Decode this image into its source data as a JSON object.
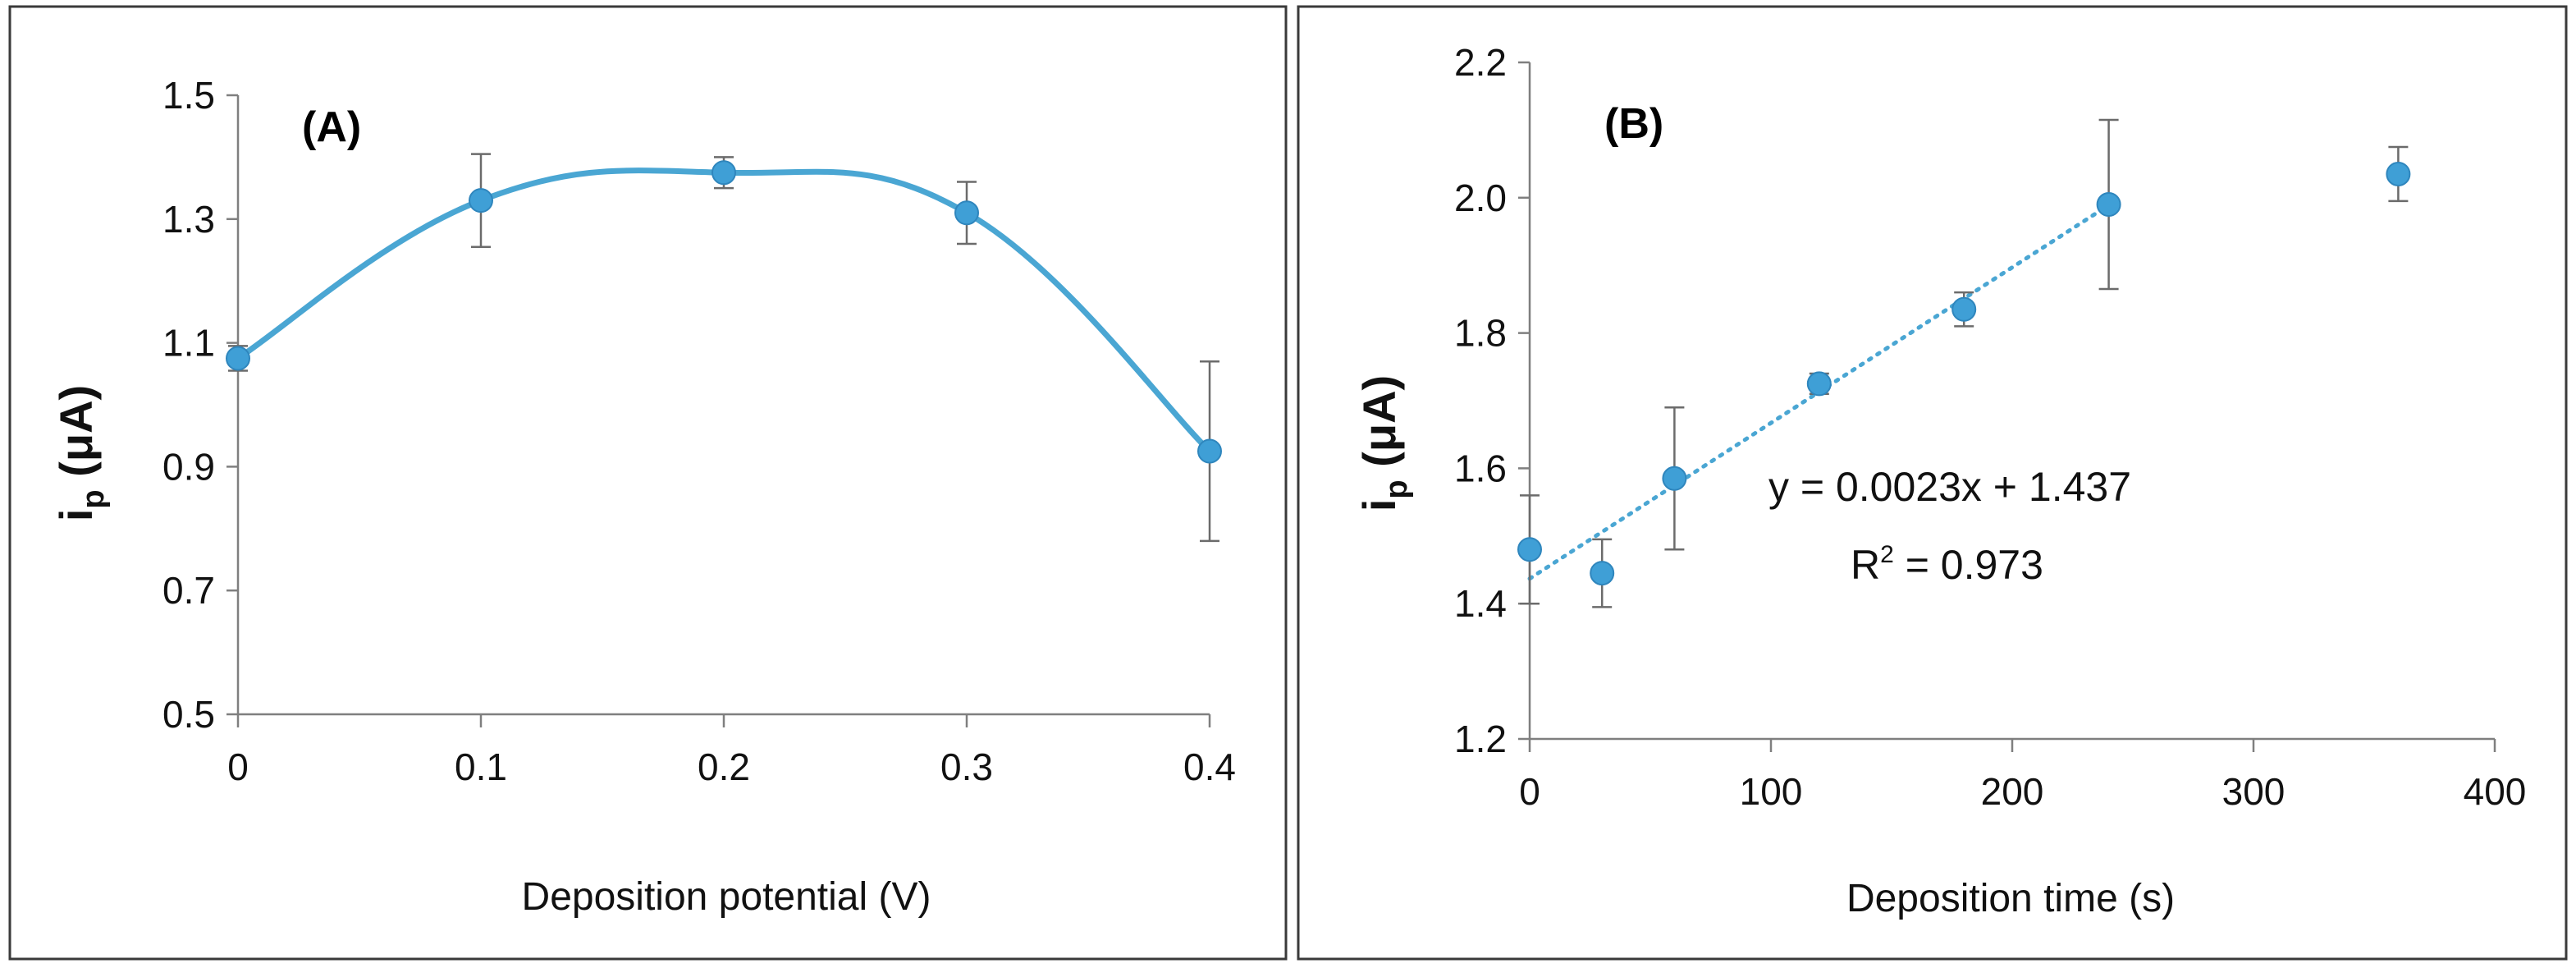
{
  "chart_data": [
    {
      "id": "A",
      "type": "line",
      "panel_label": "(A)",
      "xlabel": "Deposition potential (V)",
      "ylabel_main": "i",
      "ylabel_sub": "p",
      "ylabel_unit": " (μA)",
      "xlim": [
        0,
        0.4
      ],
      "ylim": [
        0.5,
        1.5
      ],
      "xticks": [
        "0",
        "0.1",
        "0.2",
        "0.3",
        "0.4"
      ],
      "yticks": [
        "0.5",
        "0.7",
        "0.9",
        "1.1",
        "1.3",
        "1.5"
      ],
      "x": [
        0,
        0.1,
        0.2,
        0.3,
        0.4
      ],
      "y": [
        1.075,
        1.33,
        1.375,
        1.31,
        0.925
      ],
      "yerr": [
        0.02,
        0.075,
        0.025,
        0.05,
        0.145
      ],
      "smooth": true,
      "series_color": "#3f9fd6"
    },
    {
      "id": "B",
      "type": "scatter",
      "panel_label": "(B)",
      "xlabel": "Deposition time (s)",
      "ylabel_main": "i",
      "ylabel_sub": "p",
      "ylabel_unit": " (μA)",
      "xlim": [
        0,
        400
      ],
      "ylim": [
        1.2,
        2.2
      ],
      "xticks": [
        "0",
        "100",
        "200",
        "300",
        "400"
      ],
      "yticks": [
        "1.2",
        "1.4",
        "1.6",
        "1.8",
        "2.0",
        "2.2"
      ],
      "x": [
        0,
        30,
        60,
        120,
        180,
        240,
        360
      ],
      "y": [
        1.48,
        1.445,
        1.585,
        1.725,
        1.835,
        1.99,
        2.035
      ],
      "yerr": [
        0.08,
        0.05,
        0.105,
        0.015,
        0.025,
        0.125,
        0.04
      ],
      "trendline": {
        "slope": 0.0023,
        "intercept": 1.437,
        "x_range": [
          0,
          240
        ],
        "style": "dotted"
      },
      "equation": "y = 0.0023x + 1.437",
      "r2_main": "R",
      "r2_sup": "2",
      "r2_value": " = 0.973",
      "series_color": "#3f9fd6"
    }
  ]
}
